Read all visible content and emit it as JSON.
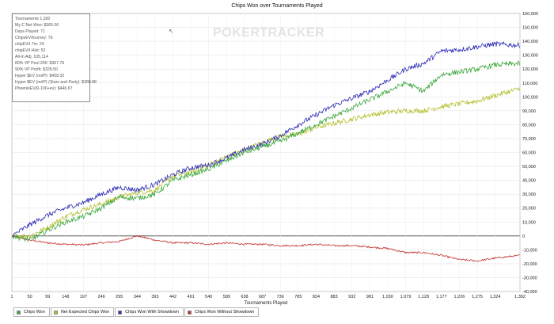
{
  "chart_data": {
    "type": "line",
    "title": "Chips Won over Tournaments Played",
    "xlabel": "Tournaments Played",
    "ylabel": "",
    "xlim": [
      1,
      1392
    ],
    "ylim": [
      -40000,
      160000
    ],
    "x_ticks": [
      "1",
      "50",
      "99",
      "148",
      "197",
      "246",
      "295",
      "344",
      "393",
      "442",
      "491",
      "540",
      "589",
      "638",
      "687",
      "736",
      "785",
      "834",
      "883",
      "932",
      "981",
      "1,030",
      "1,079",
      "1,128",
      "1,177",
      "1,226",
      "1,275",
      "1,324",
      "1,392"
    ],
    "x_tick_values": [
      1,
      50,
      99,
      148,
      197,
      246,
      295,
      344,
      393,
      442,
      491,
      540,
      589,
      638,
      687,
      736,
      785,
      834,
      883,
      932,
      981,
      1030,
      1079,
      1128,
      1177,
      1226,
      1275,
      1324,
      1392
    ],
    "y_ticks": [
      "-40,000",
      "-30,000",
      "-20,000",
      "-10,000",
      "0",
      "10,000",
      "20,000",
      "30,000",
      "40,000",
      "50,000",
      "60,000",
      "70,000",
      "80,000",
      "90,000",
      "100,000",
      "110,000",
      "120,000",
      "130,000",
      "140,000",
      "150,000",
      "160,000"
    ],
    "y_tick_values": [
      -40000,
      -30000,
      -20000,
      -10000,
      0,
      10000,
      20000,
      30000,
      40000,
      50000,
      60000,
      70000,
      80000,
      90000,
      100000,
      110000,
      120000,
      130000,
      140000,
      150000,
      160000
    ],
    "grid": true,
    "legend_position": "bottom-left",
    "series": [
      {
        "name": "Chips Won",
        "color": "#3aa63a",
        "x": [
          1,
          50,
          99,
          148,
          197,
          246,
          295,
          344,
          393,
          442,
          491,
          540,
          589,
          638,
          687,
          736,
          785,
          834,
          883,
          932,
          981,
          1030,
          1079,
          1128,
          1177,
          1226,
          1275,
          1324,
          1392
        ],
        "y": [
          0,
          -3000,
          4000,
          10000,
          14000,
          20000,
          28000,
          27000,
          30000,
          40000,
          44000,
          48000,
          54000,
          60000,
          64000,
          68000,
          74000,
          80000,
          86000,
          92000,
          98000,
          104000,
          110000,
          104000,
          116000,
          118000,
          120000,
          123000,
          124000
        ]
      },
      {
        "name": "Net Expected Chips Won",
        "color": "#b5bf2e",
        "x": [
          1,
          50,
          99,
          148,
          197,
          246,
          295,
          344,
          393,
          442,
          491,
          540,
          589,
          638,
          687,
          736,
          785,
          834,
          883,
          932,
          981,
          1030,
          1079,
          1128,
          1177,
          1226,
          1275,
          1324,
          1392
        ],
        "y": [
          0,
          0,
          6000,
          14000,
          19000,
          23000,
          28000,
          31000,
          33000,
          43000,
          46000,
          51000,
          57000,
          62000,
          67000,
          72000,
          73000,
          78000,
          81000,
          84000,
          87000,
          89000,
          90000,
          90000,
          93000,
          95000,
          97000,
          101000,
          106000
        ]
      },
      {
        "name": "Chips Won With Showdown",
        "color": "#2b2bb5",
        "x": [
          1,
          50,
          99,
          148,
          197,
          246,
          295,
          344,
          393,
          442,
          491,
          540,
          589,
          638,
          687,
          736,
          785,
          834,
          883,
          932,
          981,
          1030,
          1079,
          1128,
          1177,
          1226,
          1275,
          1324,
          1392
        ],
        "y": [
          0,
          8000,
          15000,
          20000,
          24000,
          30000,
          35000,
          33000,
          37000,
          44000,
          49000,
          51000,
          56000,
          62000,
          66000,
          72000,
          80000,
          87000,
          94000,
          99000,
          104000,
          112000,
          120000,
          124000,
          133000,
          134000,
          136000,
          138000,
          137000
        ]
      },
      {
        "name": "Chips Won Without Showdown",
        "color": "#c0302e",
        "x": [
          1,
          50,
          99,
          148,
          197,
          246,
          295,
          344,
          393,
          442,
          491,
          540,
          589,
          638,
          687,
          736,
          785,
          834,
          883,
          932,
          981,
          1030,
          1079,
          1128,
          1177,
          1226,
          1275,
          1324,
          1392
        ],
        "y": [
          0,
          -3000,
          -5000,
          -6000,
          -6500,
          -5000,
          -4000,
          0,
          -3000,
          -5000,
          -5000,
          -6000,
          -5000,
          -6000,
          -6000,
          -7000,
          -7000,
          -6000,
          -7000,
          -7000,
          -8000,
          -9000,
          -12000,
          -12000,
          -14000,
          -17000,
          -18000,
          -16000,
          -14000
        ]
      }
    ],
    "annotations": [
      "Tournaments 1,392",
      "My C Net Won: $365.00",
      "Days Played: 71",
      "ChipsEV/tourney: 76",
      "chipEV/t 7m: 24",
      "chipEV/t Hist: 52",
      "All-In Adj. 105,114",
      "80% VP Pool 200: $307.76",
      "90% VP Profit: $328.50",
      "Hyper $EV (noIP): $458.32",
      "Hyper $EV (noIP) (Stars and Party): $380.88",
      "PhoenixEV(0-100+ev): $446.67"
    ]
  },
  "watermark_text": "POKERTRACKER",
  "icons": {
    "cursor": "mouse-pointer-icon",
    "legend_swatch": "square-swatch-icon"
  }
}
